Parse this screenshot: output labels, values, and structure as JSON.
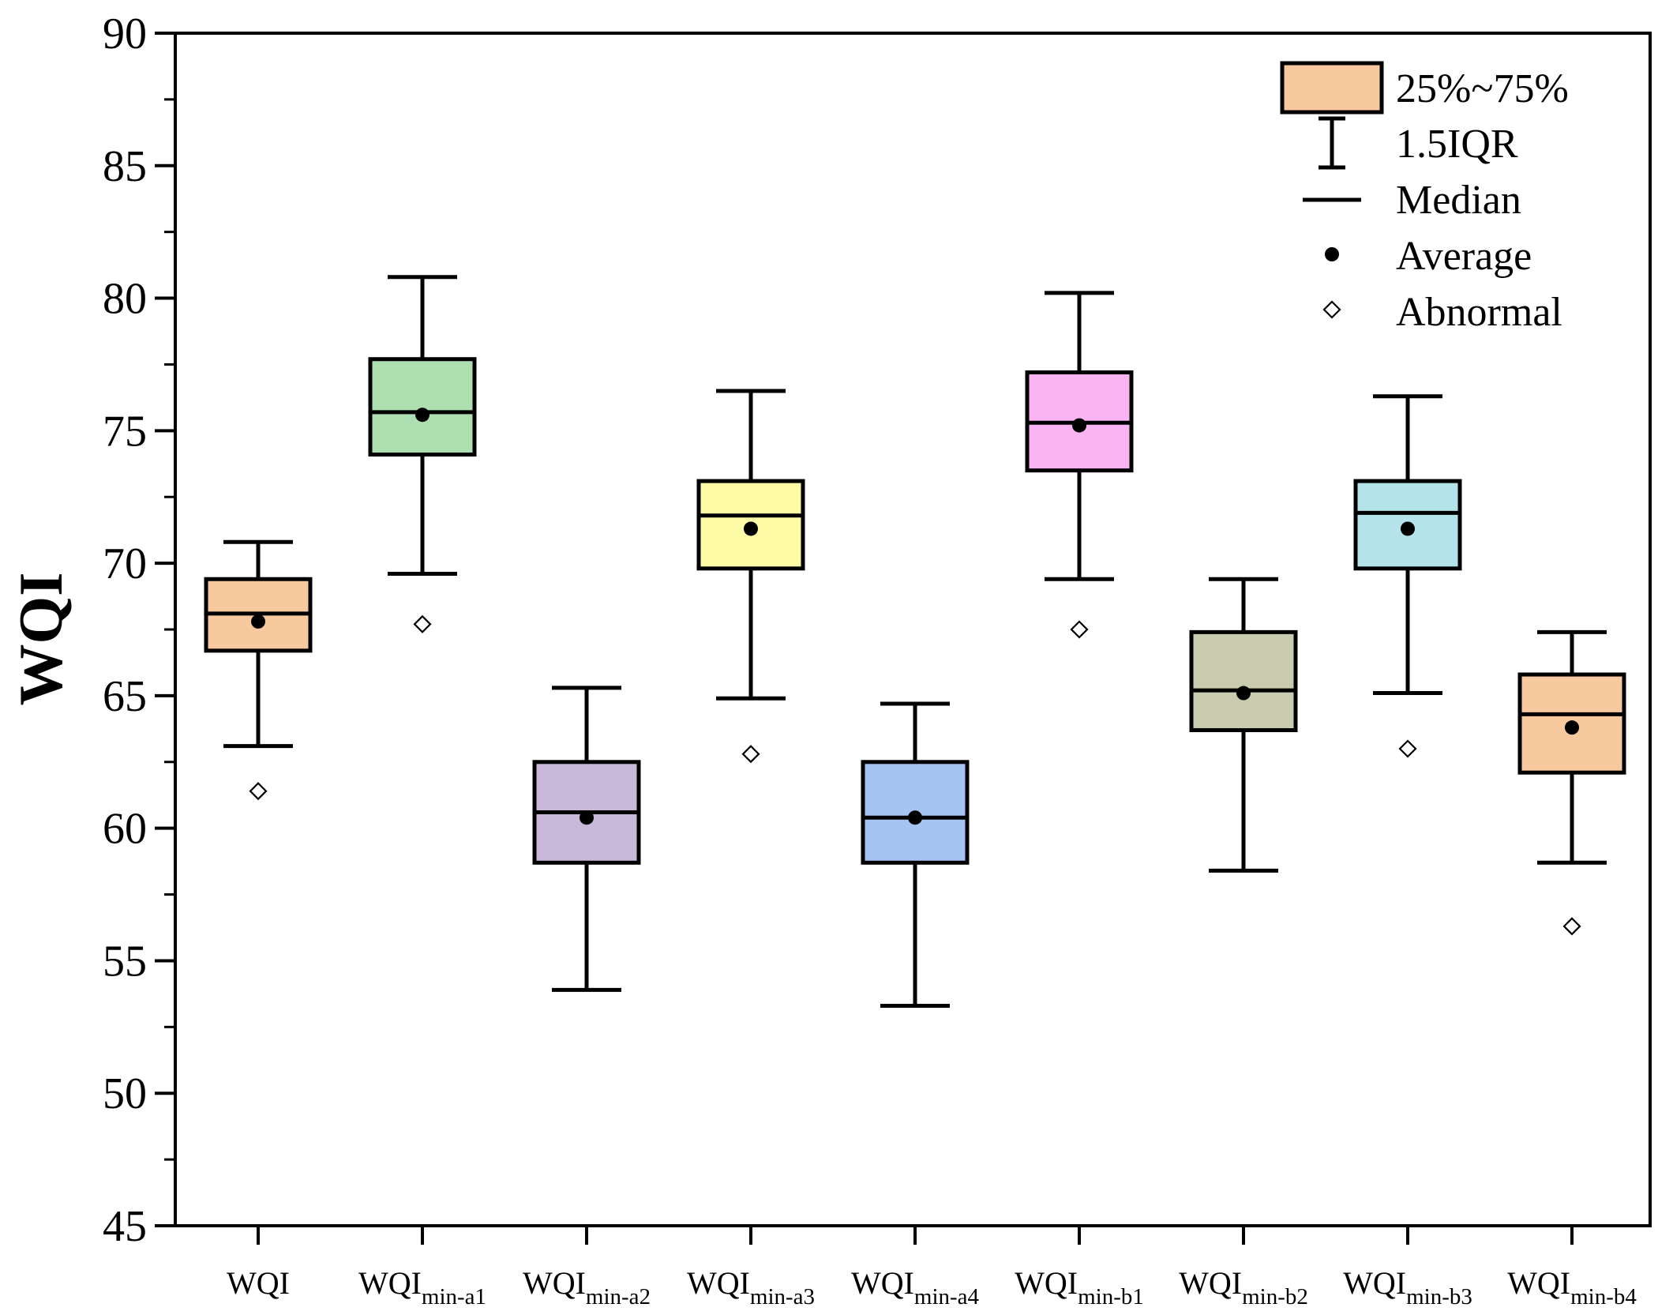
{
  "chart_data": {
    "type": "boxplot",
    "title": "",
    "xlabel": "",
    "ylabel": "WQI",
    "ylim": [
      45,
      90
    ],
    "ytick_step": 5,
    "ytick_labels": [
      "45",
      "50",
      "55",
      "60",
      "65",
      "70",
      "75",
      "80",
      "85",
      "90"
    ],
    "series": [
      {
        "name": "WQI",
        "base": "WQI",
        "sub": "",
        "color": "#F8C89E",
        "whisker_low": 63.1,
        "q1": 66.7,
        "median": 68.1,
        "q3": 69.4,
        "whisker_high": 70.8,
        "mean": 67.8,
        "outliers": [
          61.4
        ]
      },
      {
        "name": "WQImin-a1",
        "base": "WQI",
        "sub": "min-a1",
        "color": "#AEDFB0",
        "whisker_low": 69.6,
        "q1": 74.1,
        "median": 75.7,
        "q3": 77.7,
        "whisker_high": 80.8,
        "mean": 75.6,
        "outliers": [
          67.7
        ]
      },
      {
        "name": "WQImin-a2",
        "base": "WQI",
        "sub": "min-a2",
        "color": "#CAB8DB",
        "whisker_low": 53.9,
        "q1": 58.7,
        "median": 60.6,
        "q3": 62.5,
        "whisker_high": 65.3,
        "mean": 60.4,
        "outliers": []
      },
      {
        "name": "WQImin-a3",
        "base": "WQI",
        "sub": "min-a3",
        "color": "#FDFBA6",
        "whisker_low": 64.9,
        "q1": 69.8,
        "median": 71.8,
        "q3": 73.1,
        "whisker_high": 76.5,
        "mean": 71.3,
        "outliers": [
          62.8
        ]
      },
      {
        "name": "WQImin-a4",
        "base": "WQI",
        "sub": "min-a4",
        "color": "#A6C4F2",
        "whisker_low": 53.3,
        "q1": 58.7,
        "median": 60.4,
        "q3": 62.5,
        "whisker_high": 64.7,
        "mean": 60.4,
        "outliers": []
      },
      {
        "name": "WQImin-b1",
        "base": "WQI",
        "sub": "min-b1",
        "color": "#FBB4F2",
        "whisker_low": 69.4,
        "q1": 73.5,
        "median": 75.3,
        "q3": 77.2,
        "whisker_high": 80.2,
        "mean": 75.2,
        "outliers": [
          67.5
        ]
      },
      {
        "name": "WQImin-b2",
        "base": "WQI",
        "sub": "min-b2",
        "color": "#C8CBAE",
        "whisker_low": 58.4,
        "q1": 63.7,
        "median": 65.2,
        "q3": 67.4,
        "whisker_high": 69.4,
        "mean": 65.1,
        "outliers": []
      },
      {
        "name": "WQImin-b3",
        "base": "WQI",
        "sub": "min-b3",
        "color": "#B4E3EA",
        "whisker_low": 65.1,
        "q1": 69.8,
        "median": 71.9,
        "q3": 73.1,
        "whisker_high": 76.3,
        "mean": 71.3,
        "outliers": [
          63.0
        ]
      },
      {
        "name": "WQImin-b4",
        "base": "WQI",
        "sub": "min-b4",
        "color": "#F8C89E",
        "whisker_low": 58.7,
        "q1": 62.1,
        "median": 64.3,
        "q3": 65.8,
        "whisker_high": 67.4,
        "mean": 63.8,
        "outliers": [
          56.3
        ]
      }
    ],
    "legend": {
      "position": "top-right",
      "items": [
        {
          "kind": "box",
          "label": "25%~75%",
          "color": "#F8C89E"
        },
        {
          "kind": "whisker",
          "label": "1.5IQR"
        },
        {
          "kind": "median",
          "label": "Median"
        },
        {
          "kind": "mean",
          "label": "Average"
        },
        {
          "kind": "outlier",
          "label": "Abnormal"
        }
      ]
    }
  }
}
